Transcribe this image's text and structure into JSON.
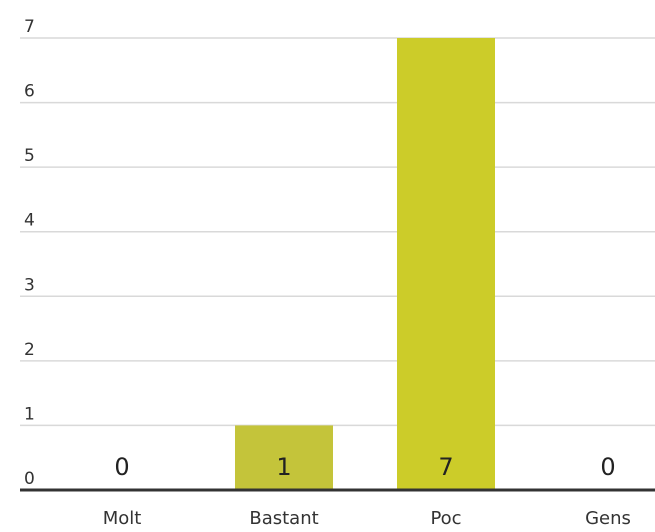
{
  "chart_data": {
    "type": "bar",
    "categories": [
      "Molt",
      "Bastant",
      "Poc",
      "Gens"
    ],
    "values": [
      0,
      1,
      7,
      0
    ],
    "data_labels": [
      "0",
      "1",
      "7",
      "0"
    ],
    "yticks": [
      "0",
      "1",
      "2",
      "3",
      "4",
      "5",
      "6",
      "7"
    ],
    "ylim": [
      0,
      7
    ],
    "grid": true,
    "colors": {
      "Bastant": "#c4c43a",
      "Poc": "#cccc29",
      "grid": "#d9d9d9",
      "axis": "#333333"
    },
    "title": "",
    "xlabel": "",
    "ylabel": ""
  }
}
